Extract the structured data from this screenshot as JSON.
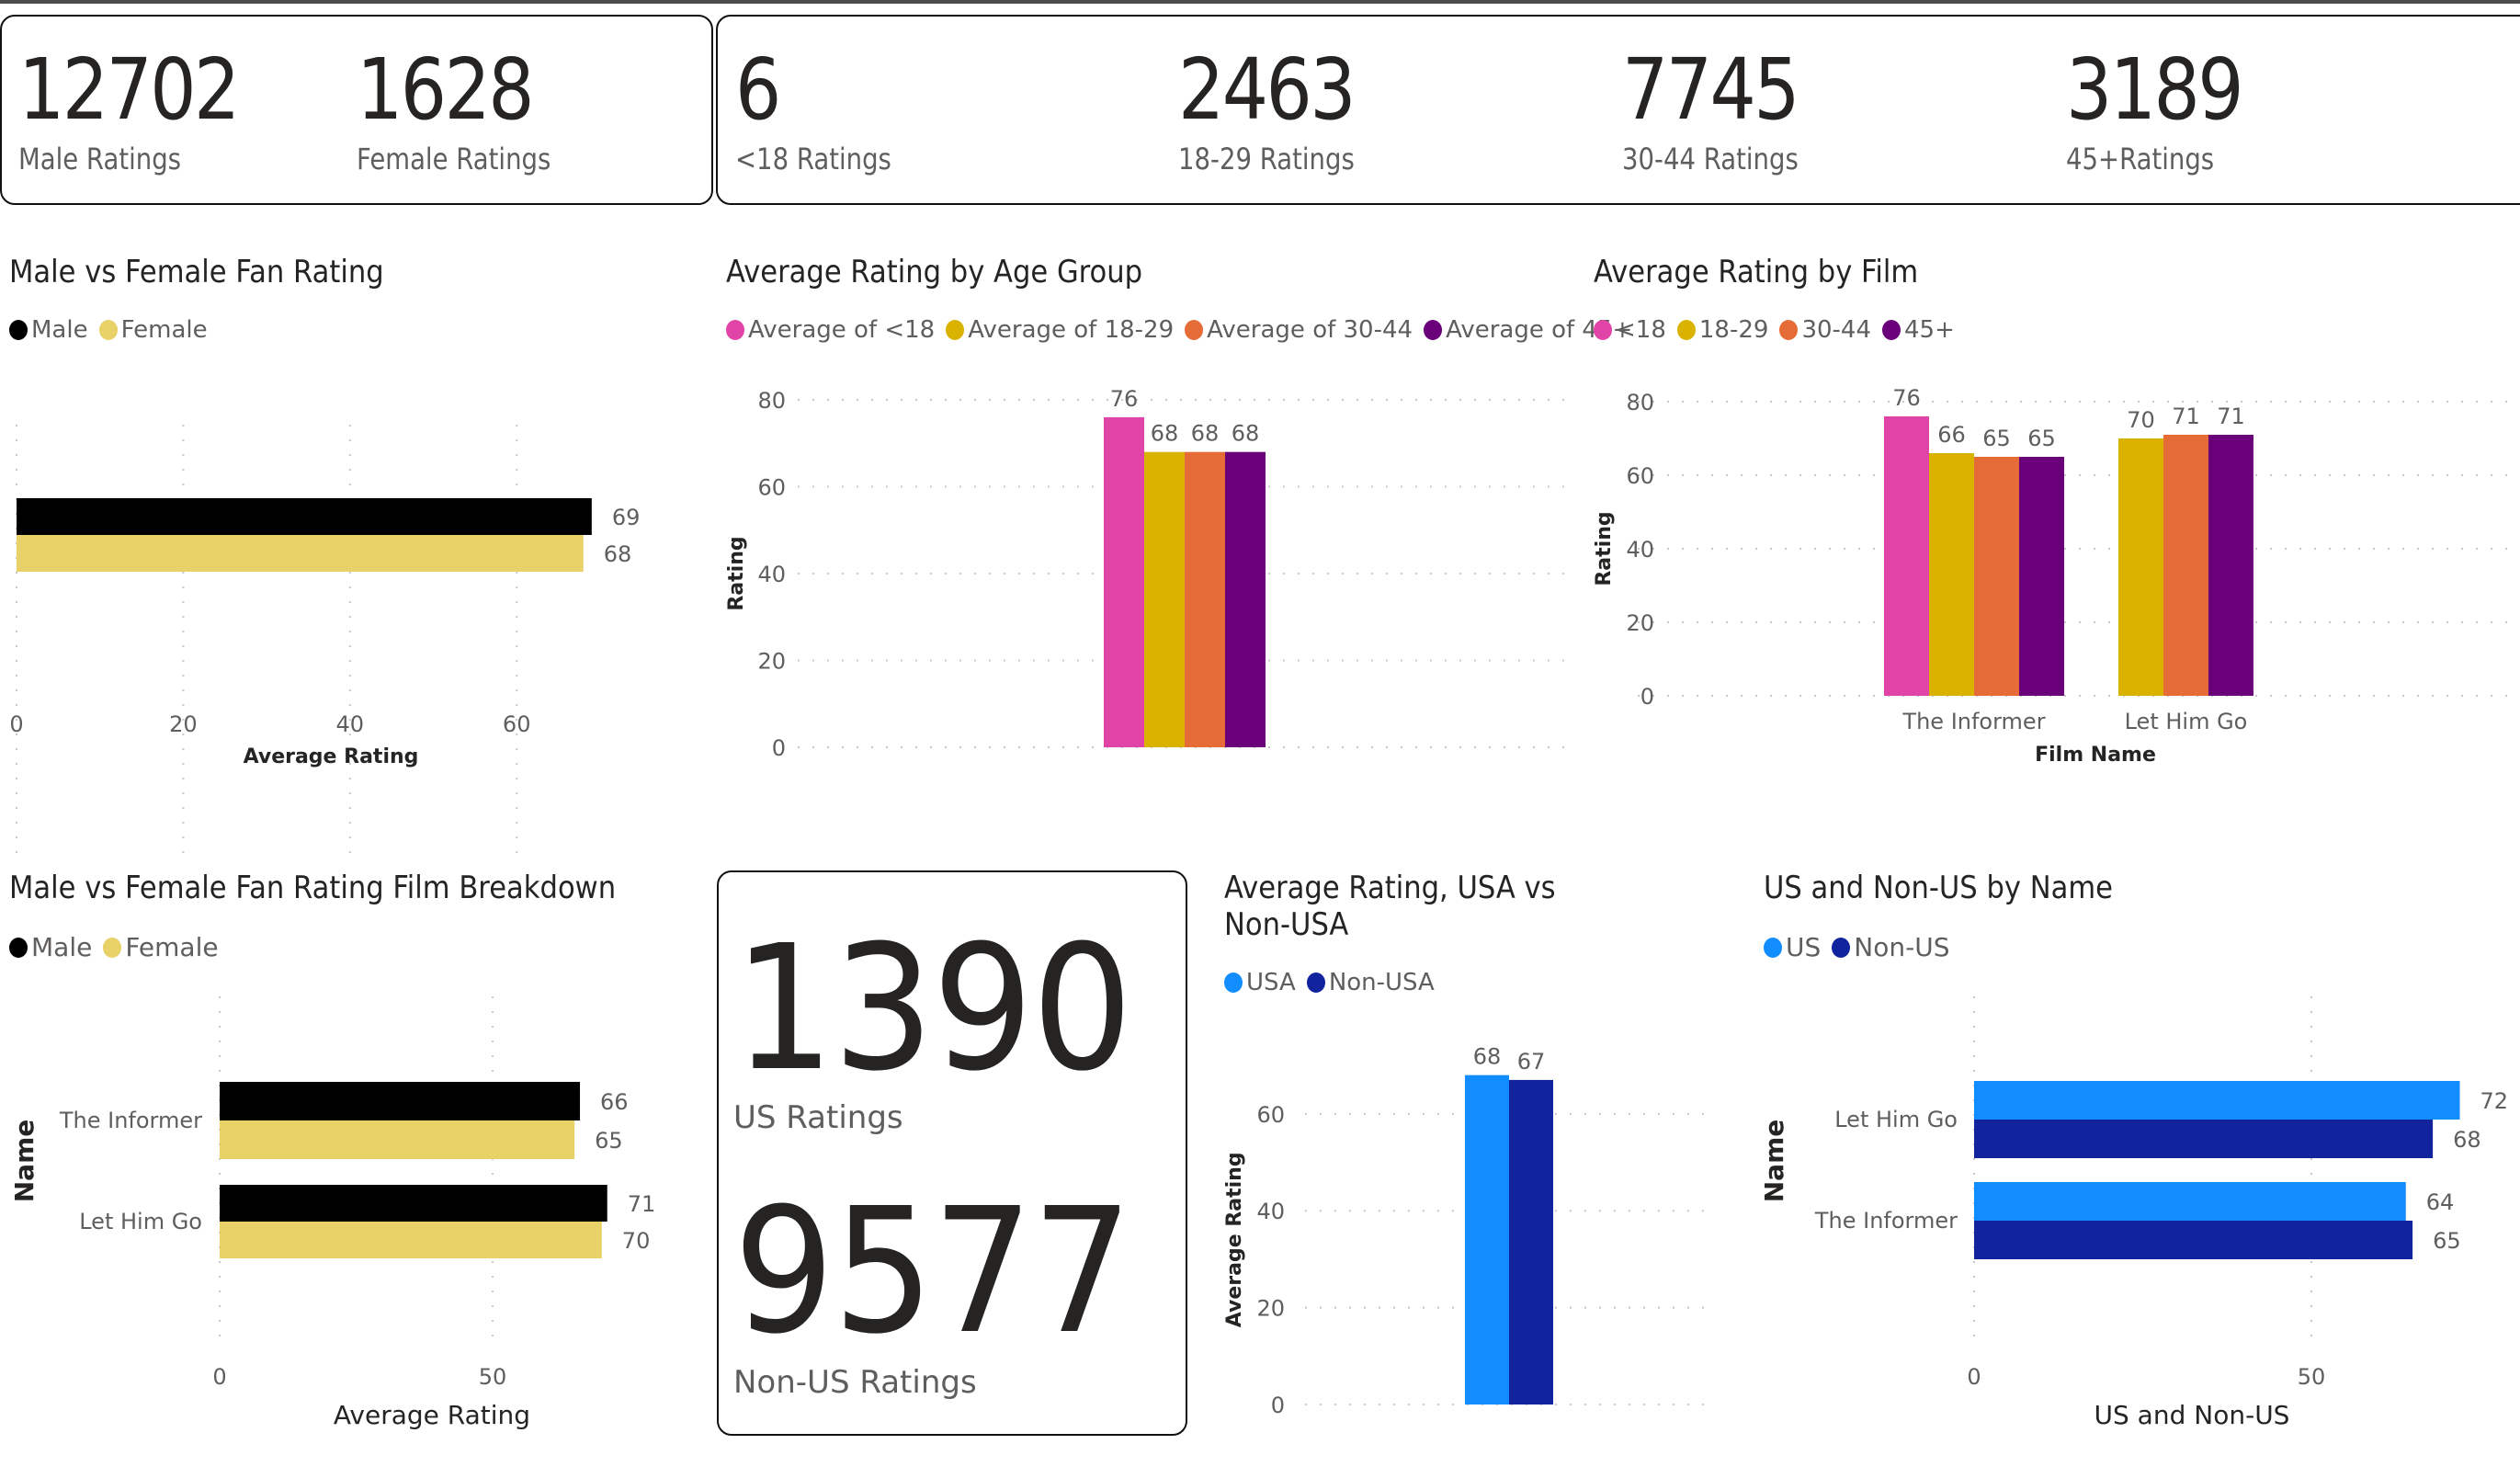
{
  "kpi_gender": [
    {
      "value": "12702",
      "label": "Male Ratings"
    },
    {
      "value": "1628",
      "label": "Female Ratings"
    }
  ],
  "kpi_age": [
    {
      "value": "6",
      "label": "<18 Ratings"
    },
    {
      "value": "2463",
      "label": "18-29 Ratings"
    },
    {
      "value": "7745",
      "label": "30-44 Ratings"
    },
    {
      "value": "3189",
      "label": "45+Ratings"
    }
  ],
  "kpi_region": [
    {
      "value": "1390",
      "label": "US Ratings"
    },
    {
      "value": "9577",
      "label": "Non-US Ratings"
    }
  ],
  "colors": {
    "male": "#000000",
    "female": "#e8d166",
    "lt18": "#e044a7",
    "a18_29": "#d9b300",
    "a30_44": "#e66c37",
    "a45p": "#6b007b",
    "usa": "#118dff",
    "nonusa": "#12239e"
  },
  "chart_data": [
    {
      "id": "gender",
      "type": "bar",
      "orientation": "horizontal",
      "title": "Male vs Female Fan Rating",
      "legend": [
        "Male",
        "Female"
      ],
      "legend_position": "top-left",
      "categories": [
        ""
      ],
      "series": [
        {
          "name": "Male",
          "values": [
            69
          ]
        },
        {
          "name": "Female",
          "values": [
            68
          ]
        }
      ],
      "xlabel": "Average Rating",
      "ylabel": "",
      "xticks": [
        "0",
        "20",
        "40",
        "60"
      ],
      "xlim": [
        0,
        69
      ],
      "grid": true
    },
    {
      "id": "age",
      "type": "bar",
      "orientation": "vertical",
      "title": "Average Rating by Age Group",
      "legend": [
        "Average of <18",
        "Average of 18-29",
        "Average of 30-44",
        "Average of 45+"
      ],
      "legend_position": "top-left",
      "categories": [
        ""
      ],
      "series": [
        {
          "name": "Average of <18",
          "values": [
            76
          ]
        },
        {
          "name": "Average of 18-29",
          "values": [
            68
          ]
        },
        {
          "name": "Average of 30-44",
          "values": [
            68
          ]
        },
        {
          "name": "Average of 45+",
          "values": [
            68
          ]
        }
      ],
      "xlabel": "",
      "ylabel": "Rating",
      "yticks": [
        "0",
        "20",
        "40",
        "60",
        "80"
      ],
      "ylim": [
        0,
        80
      ],
      "grid": true
    },
    {
      "id": "film",
      "type": "bar",
      "orientation": "vertical",
      "title": "Average Rating by Film",
      "legend": [
        "<18",
        "18-29",
        "30-44",
        "45+"
      ],
      "legend_position": "top-left",
      "categories": [
        "The Informer",
        "Let Him Go"
      ],
      "series": [
        {
          "name": "<18",
          "values": [
            76,
            null
          ]
        },
        {
          "name": "18-29",
          "values": [
            66,
            70
          ]
        },
        {
          "name": "30-44",
          "values": [
            65,
            71
          ]
        },
        {
          "name": "45+",
          "values": [
            65,
            71
          ]
        }
      ],
      "xlabel": "Film Name",
      "ylabel": "Rating",
      "yticks": [
        "0",
        "20",
        "40",
        "60",
        "80"
      ],
      "ylim": [
        0,
        80
      ],
      "grid": true
    },
    {
      "id": "breakdown",
      "type": "bar",
      "orientation": "horizontal",
      "title": "Male vs Female Fan Rating Film Breakdown",
      "legend": [
        "Male",
        "Female"
      ],
      "legend_position": "top-left",
      "categories": [
        "The Informer",
        "Let Him Go"
      ],
      "series": [
        {
          "name": "Male",
          "values": [
            66,
            71
          ]
        },
        {
          "name": "Female",
          "values": [
            65,
            70
          ]
        }
      ],
      "xlabel": "Average Rating",
      "ylabel": "Name",
      "xticks": [
        "0",
        "50"
      ],
      "xlim": [
        0,
        71
      ],
      "grid": true
    },
    {
      "id": "usa",
      "type": "bar",
      "orientation": "vertical",
      "title": "Average Rating, USA vs Non-USA",
      "legend": [
        "USA",
        "Non-USA"
      ],
      "legend_position": "top-left",
      "categories": [
        ""
      ],
      "series": [
        {
          "name": "USA",
          "values": [
            68
          ]
        },
        {
          "name": "Non-USA",
          "values": [
            67
          ]
        }
      ],
      "xlabel": "",
      "ylabel": "Average Rating",
      "yticks": [
        "0",
        "20",
        "40",
        "60"
      ],
      "ylim": [
        0,
        68
      ],
      "grid": true
    },
    {
      "id": "usname",
      "type": "bar",
      "orientation": "horizontal",
      "title": "US and Non-US by Name",
      "legend": [
        "US",
        "Non-US"
      ],
      "legend_position": "top-left",
      "categories": [
        "Let Him Go",
        "The Informer"
      ],
      "series": [
        {
          "name": "US",
          "values": [
            72,
            64
          ]
        },
        {
          "name": "Non-US",
          "values": [
            68,
            65
          ]
        }
      ],
      "xlabel": "US and Non-US",
      "ylabel": "Name",
      "xticks": [
        "0",
        "50"
      ],
      "xlim": [
        0,
        72
      ],
      "grid": true
    }
  ]
}
